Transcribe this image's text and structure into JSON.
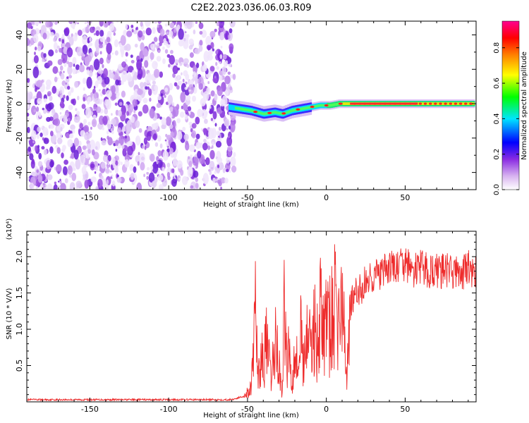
{
  "title": "C2E2.2023.036.06.03.R09",
  "chart_data": [
    {
      "type": "heatmap",
      "name": "spectrogram",
      "xlabel": "Height of straight line (km)",
      "ylabel": "Frequency (Hz)",
      "xlim": [
        -190,
        95
      ],
      "ylim": [
        -50,
        48
      ],
      "xticks": [
        -150,
        -100,
        -50,
        0,
        50
      ],
      "xtick_labels": [
        "-150",
        "-100",
        "-50",
        "0",
        "50"
      ],
      "yticks": [
        -40,
        -20,
        0,
        20,
        40
      ],
      "ytick_labels": [
        "-40",
        "-20",
        "0",
        "20",
        "40"
      ],
      "noise_region_x": [
        -190,
        -60
      ],
      "ridge": {
        "x": [
          -62,
          -55,
          -48,
          -40,
          -33,
          -28,
          -22,
          -16,
          -10,
          -4,
          2,
          8,
          15,
          30,
          60,
          94
        ],
        "y": [
          -2,
          -3,
          -4,
          -6,
          -5,
          -6,
          -4,
          -3,
          -2,
          -1,
          -1,
          0,
          0,
          0,
          0,
          0
        ]
      },
      "colorbar": {
        "label": "Normalized spectral amplitude",
        "range": [
          0,
          0.95
        ],
        "ticks": [
          0.0,
          0.2,
          0.4,
          0.6,
          0.8
        ],
        "tick_labels": [
          "0.0",
          "0.2",
          "0.4",
          "0.6",
          "0.8"
        ],
        "colors": [
          "#ffffff",
          "#8a2be2",
          "#0000ff",
          "#00e5ff",
          "#00ff00",
          "#ffff00",
          "#ff8000",
          "#ff0000",
          "#ff0090"
        ]
      }
    },
    {
      "type": "line",
      "name": "snr",
      "xlabel": "Height of straight line (km)",
      "ylabel": "SNR (10 * V/V)",
      "scale_label": "(x10⁴)",
      "xlim": [
        -190,
        95
      ],
      "ylim": [
        0,
        23500
      ],
      "xticks": [
        -150,
        -100,
        -50,
        0,
        50
      ],
      "xtick_labels": [
        "-150",
        "-100",
        "-50",
        "0",
        "50"
      ],
      "yticks": [
        5000,
        10000,
        15000,
        20000
      ],
      "ytick_labels": [
        "0.5",
        "1.0",
        "1.5",
        "2.0"
      ],
      "color": "#ee2b2b",
      "series": [
        {
          "name": "SNR",
          "x": [
            -190,
            -60,
            -52,
            -48,
            -46,
            -45,
            -44,
            -43,
            -42,
            -40,
            -38,
            -35,
            -32,
            -30,
            -28,
            -26,
            -25,
            -24,
            -23,
            -22,
            -20,
            -18,
            -16,
            -14,
            -12,
            -10,
            -8,
            -6,
            -4,
            -2,
            0,
            2,
            5,
            8,
            10,
            12,
            13,
            15,
            20,
            25,
            30,
            35,
            40,
            45,
            50,
            55,
            60,
            65,
            70,
            75,
            80,
            85,
            90,
            94
          ],
          "y": [
            300,
            300,
            800,
            2000,
            6000,
            14000,
            9000,
            3000,
            7000,
            5000,
            8000,
            3000,
            9000,
            5000,
            1000,
            18000,
            3000,
            8000,
            6000,
            2000,
            9000,
            4000,
            10000,
            5000,
            12000,
            6000,
            11000,
            8000,
            13000,
            9000,
            12000,
            10000,
            13000,
            11000,
            14000,
            6000,
            4000,
            13500,
            15000,
            16500,
            17500,
            17500,
            18500,
            18500,
            19000,
            18000,
            18500,
            18000,
            18000,
            18000,
            18000,
            17500,
            18500,
            17500
          ]
        }
      ]
    }
  ]
}
